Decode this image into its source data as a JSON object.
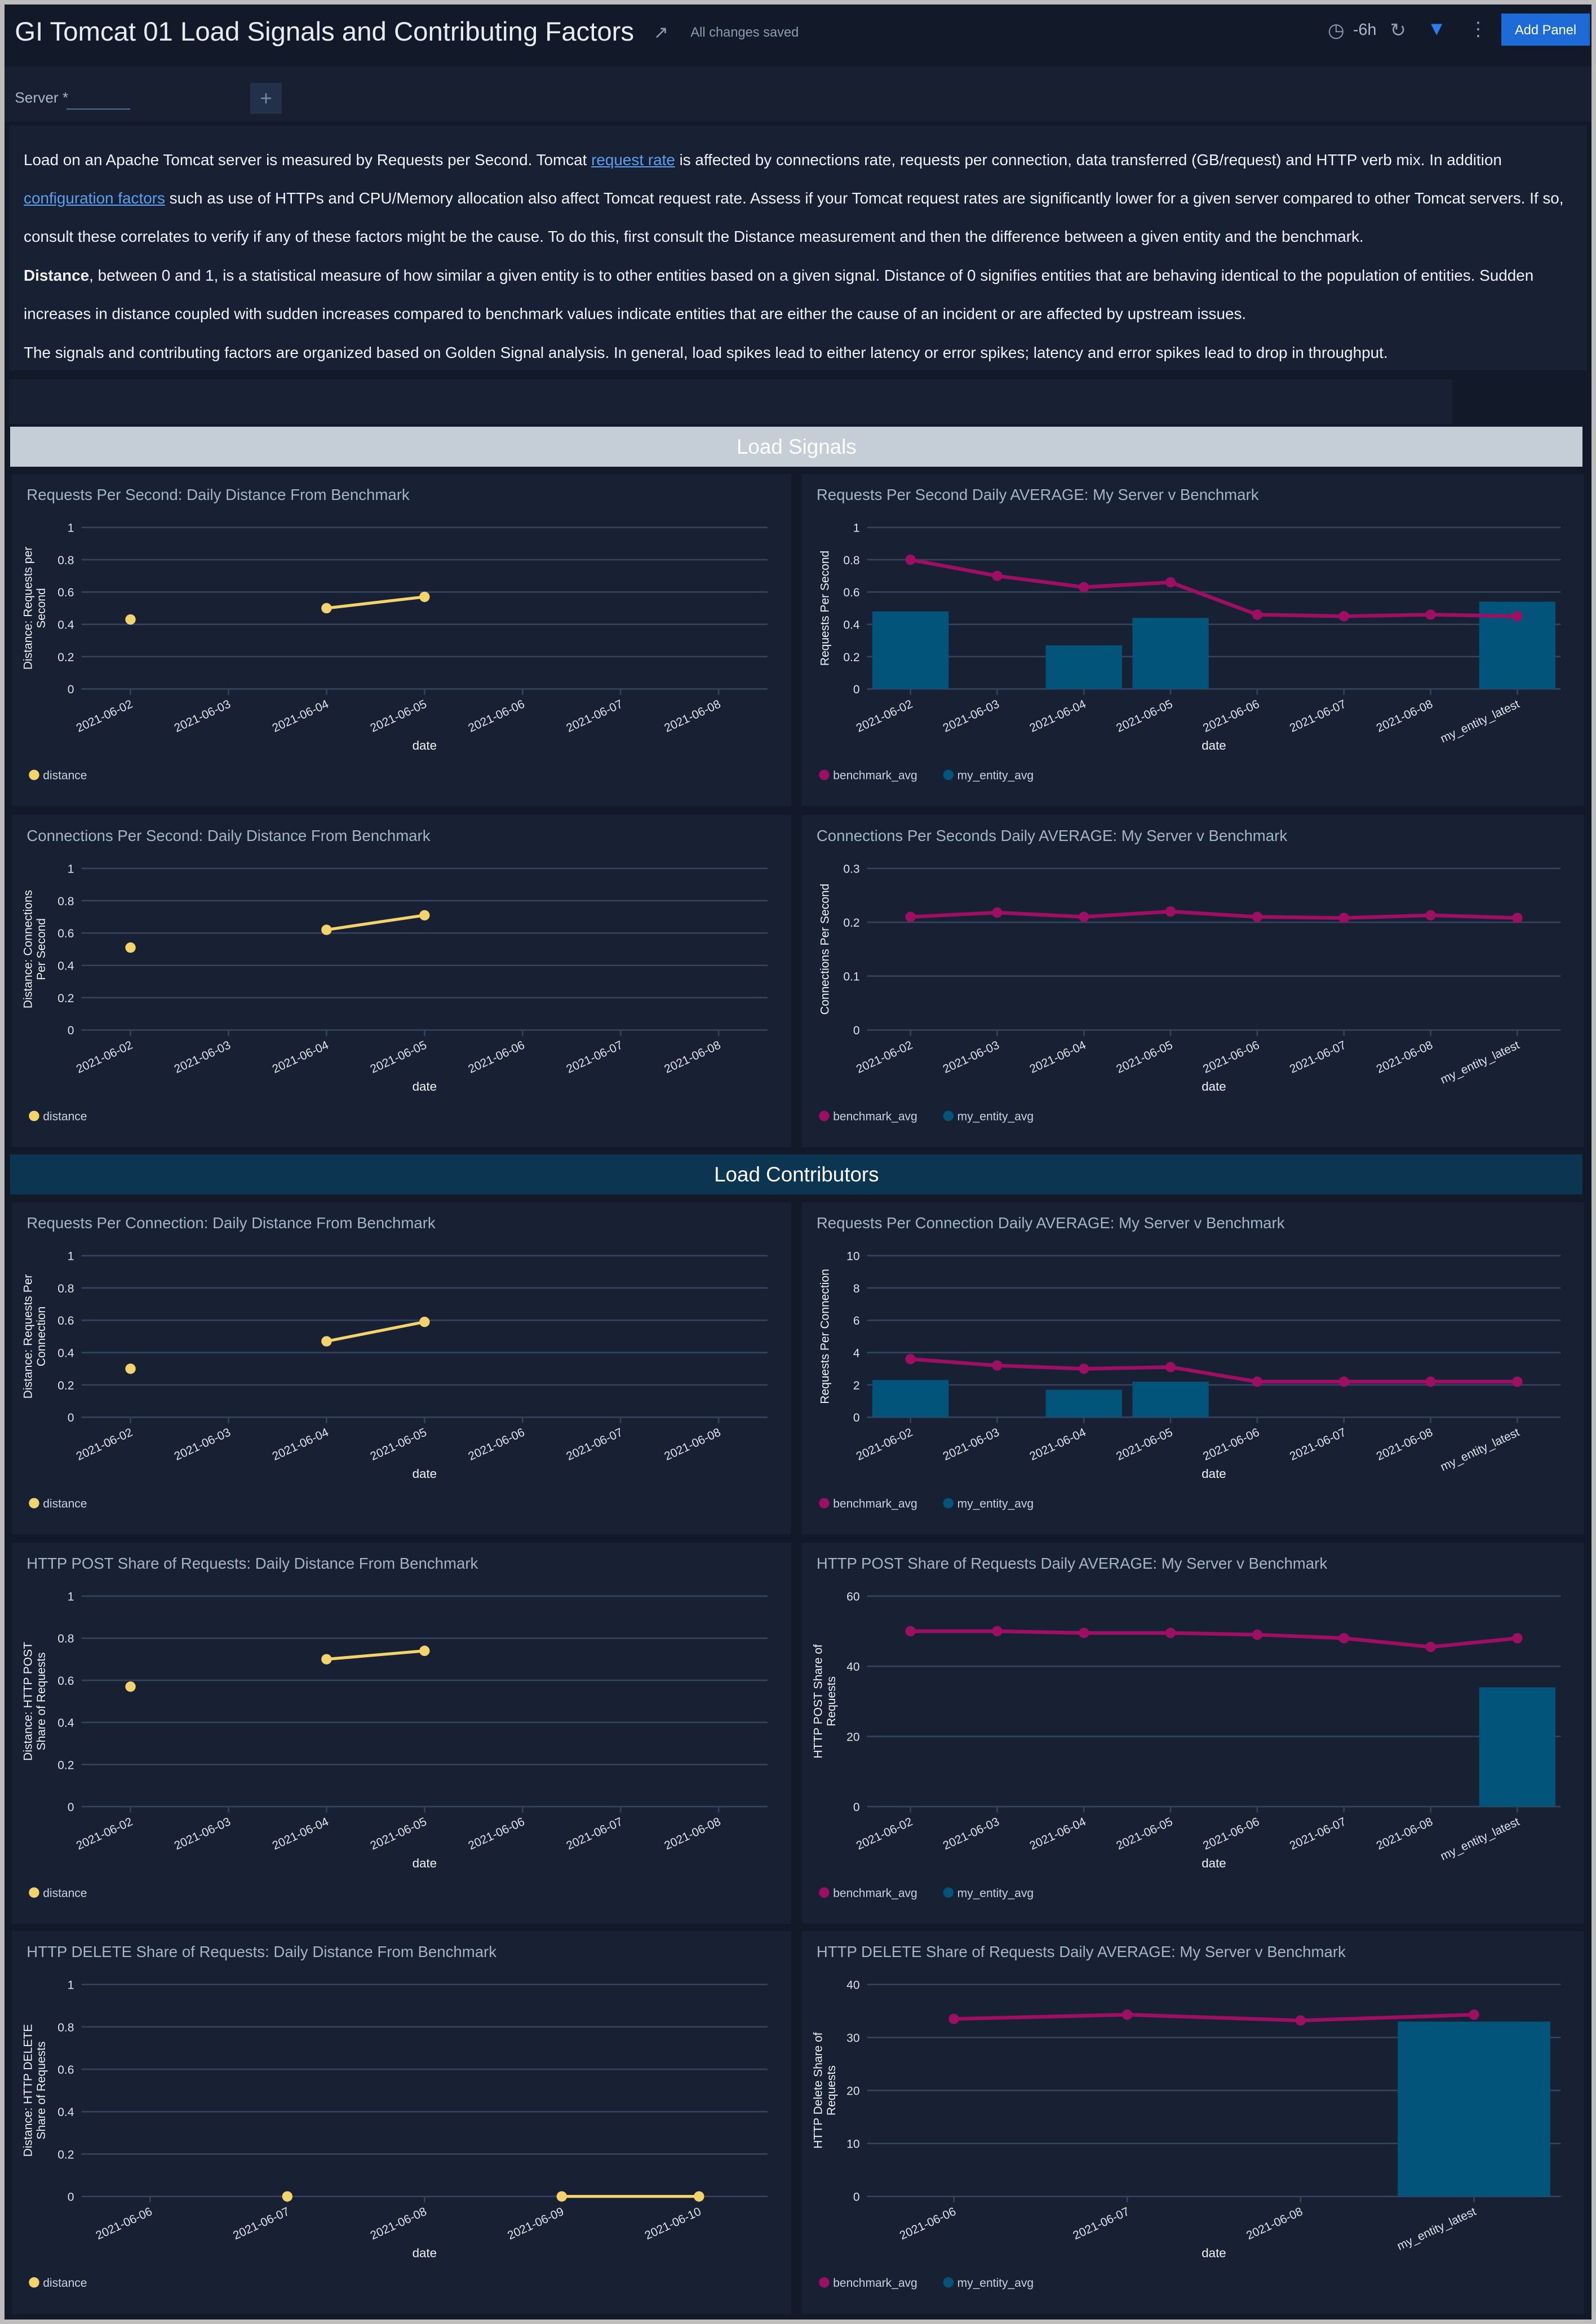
{
  "header": {
    "title": "GI Tomcat 01 Load Signals and Contributing Factors",
    "saved_status": "All changes saved",
    "time_range": "-6h",
    "add_panel_label": "Add Panel",
    "icons": [
      "edit-icon",
      "clock-icon",
      "refresh-icon",
      "filter-icon",
      "more-icon"
    ]
  },
  "filters": {
    "server_label": "Server",
    "required_mark": "*",
    "server_value": "",
    "add_filter_label": "+"
  },
  "description": {
    "p1_a": "Load on an Apache Tomcat server is measured by Requests per Second. Tomcat ",
    "p1_link": "request rate",
    "p1_b": " is affected by connections rate, requests per connection, data transferred (GB/request) and HTTP verb mix. In addition ",
    "p1_link2": "configuration factors",
    "p1_c": " such as use of HTTPs and CPU/Memory allocation also affect Tomcat request rate. Assess if your Tomcat request rates are significantly lower for a given server compared to other Tomcat servers. If so, consult these correlates to verify if any of these factors might be the cause. To do this, first consult the Distance measurement and then the difference between a given entity and the benchmark.",
    "p2_bold": "Distance",
    "p2": ", between 0 and 1, is a statistical measure of how similar a given entity is to other entities based on a given signal. Distance of 0 signifies entities that are behaving identical to the population of entities. Sudden increases in distance coupled with sudden increases compared to benchmark values indicate entities that are either the cause of an incident or are affected by upstream issues.",
    "p3": "The signals and contributing factors are organized based on Golden Signal analysis. In general, load spikes lead to either latency or error spikes; latency and error spikes lead to drop in throughput."
  },
  "sections": [
    {
      "title": "Load Signals",
      "color": "#c5ced7"
    },
    {
      "title": "Load Contributors",
      "color": "#0b3550"
    }
  ],
  "colors": {
    "distance": "#f3d36b",
    "benchmark": "#9c0f62",
    "entity": "#02547a",
    "grid": "#34435e"
  },
  "chart_data": [
    {
      "type": "line",
      "title": "Requests Per Second: Daily Distance From Benchmark",
      "ylabel": "Distance: Requests per Second",
      "xlabel": "date",
      "ylim": [
        0,
        1
      ],
      "yticks": [
        0,
        0.2,
        0.4,
        0.6,
        0.8,
        1
      ],
      "categories": [
        "2021-06-02",
        "2021-06-03",
        "2021-06-04",
        "2021-06-05",
        "2021-06-06",
        "2021-06-07",
        "2021-06-08"
      ],
      "series": [
        {
          "name": "distance",
          "kind": "line",
          "color": "#f3d36b",
          "values": [
            0.43,
            null,
            0.5,
            0.57,
            null,
            null,
            null
          ]
        }
      ]
    },
    {
      "type": "bar+line",
      "title": "Requests Per Second Daily AVERAGE: My Server v Benchmark",
      "ylabel": "Requests Per Second",
      "xlabel": "date",
      "ylim": [
        0,
        1
      ],
      "yticks": [
        0,
        0.2,
        0.4,
        0.6,
        0.8,
        1
      ],
      "categories": [
        "2021-06-02",
        "2021-06-03",
        "2021-06-04",
        "2021-06-05",
        "2021-06-06",
        "2021-06-07",
        "2021-06-08",
        "my_entity_latest"
      ],
      "series": [
        {
          "name": "benchmark_avg",
          "kind": "line",
          "color": "#9c0f62",
          "values": [
            0.8,
            0.7,
            0.63,
            0.66,
            0.46,
            0.45,
            0.46,
            0.45
          ]
        },
        {
          "name": "my_entity_avg",
          "kind": "bar",
          "color": "#02547a",
          "values": [
            0.48,
            null,
            0.27,
            0.44,
            null,
            null,
            null,
            0.54
          ]
        }
      ]
    },
    {
      "type": "line",
      "title": "Connections Per Second: Daily Distance From Benchmark",
      "ylabel": "Distance: Connections Per Second",
      "xlabel": "date",
      "ylim": [
        0,
        1
      ],
      "yticks": [
        0,
        0.2,
        0.4,
        0.6,
        0.8,
        1
      ],
      "categories": [
        "2021-06-02",
        "2021-06-03",
        "2021-06-04",
        "2021-06-05",
        "2021-06-06",
        "2021-06-07",
        "2021-06-08"
      ],
      "series": [
        {
          "name": "distance",
          "kind": "line",
          "color": "#f3d36b",
          "values": [
            0.51,
            null,
            0.62,
            0.71,
            null,
            null,
            null
          ]
        }
      ]
    },
    {
      "type": "bar+line",
      "title": "Connections Per Seconds Daily AVERAGE: My Server v Benchmark",
      "ylabel": "Connections Per Second",
      "xlabel": "date",
      "ylim": [
        0,
        0.3
      ],
      "yticks": [
        0,
        0.1,
        0.2,
        0.3
      ],
      "categories": [
        "2021-06-02",
        "2021-06-03",
        "2021-06-04",
        "2021-06-05",
        "2021-06-06",
        "2021-06-07",
        "2021-06-08",
        "my_entity_latest"
      ],
      "series": [
        {
          "name": "benchmark_avg",
          "kind": "line",
          "color": "#9c0f62",
          "values": [
            0.21,
            0.218,
            0.21,
            0.22,
            0.21,
            0.208,
            0.213,
            0.208
          ]
        },
        {
          "name": "my_entity_avg",
          "kind": "bar",
          "color": "#02547a",
          "values": [
            null,
            null,
            null,
            null,
            null,
            null,
            null,
            null
          ]
        }
      ]
    },
    {
      "type": "line",
      "title": "Requests Per Connection: Daily Distance From Benchmark",
      "ylabel": "Distance: Requests Per Connection",
      "xlabel": "date",
      "ylim": [
        0,
        1
      ],
      "yticks": [
        0,
        0.2,
        0.4,
        0.6,
        0.8,
        1
      ],
      "categories": [
        "2021-06-02",
        "2021-06-03",
        "2021-06-04",
        "2021-06-05",
        "2021-06-06",
        "2021-06-07",
        "2021-06-08"
      ],
      "series": [
        {
          "name": "distance",
          "kind": "line",
          "color": "#f3d36b",
          "values": [
            0.3,
            null,
            0.47,
            0.59,
            null,
            null,
            null
          ]
        }
      ]
    },
    {
      "type": "bar+line",
      "title": "Requests Per Connection Daily AVERAGE: My Server v Benchmark",
      "ylabel": "Requests Per Connection",
      "xlabel": "date",
      "ylim": [
        0,
        10
      ],
      "yticks": [
        0,
        2,
        4,
        6,
        8,
        10
      ],
      "categories": [
        "2021-06-02",
        "2021-06-03",
        "2021-06-04",
        "2021-06-05",
        "2021-06-06",
        "2021-06-07",
        "2021-06-08",
        "my_entity_latest"
      ],
      "series": [
        {
          "name": "benchmark_avg",
          "kind": "line",
          "color": "#9c0f62",
          "values": [
            3.6,
            3.2,
            3.0,
            3.1,
            2.2,
            2.2,
            2.2,
            2.2
          ]
        },
        {
          "name": "my_entity_avg",
          "kind": "bar",
          "color": "#02547a",
          "values": [
            2.3,
            null,
            1.7,
            2.2,
            null,
            null,
            null,
            null
          ]
        }
      ]
    },
    {
      "type": "line",
      "title": "HTTP POST Share of Requests: Daily Distance From Benchmark",
      "ylabel": "Distance: HTTP POST Share of Requests",
      "xlabel": "date",
      "ylim": [
        0,
        1
      ],
      "yticks": [
        0,
        0.2,
        0.4,
        0.6,
        0.8,
        1
      ],
      "categories": [
        "2021-06-02",
        "2021-06-03",
        "2021-06-04",
        "2021-06-05",
        "2021-06-06",
        "2021-06-07",
        "2021-06-08"
      ],
      "series": [
        {
          "name": "distance",
          "kind": "line",
          "color": "#f3d36b",
          "values": [
            0.57,
            null,
            0.7,
            0.74,
            null,
            null,
            null
          ]
        }
      ]
    },
    {
      "type": "bar+line",
      "title": "HTTP POST Share of Requests Daily AVERAGE: My Server v Benchmark",
      "ylabel": "HTTP POST Share of Requests",
      "xlabel": "date",
      "ylim": [
        0,
        60
      ],
      "yticks": [
        0,
        20,
        40,
        60
      ],
      "categories": [
        "2021-06-02",
        "2021-06-03",
        "2021-06-04",
        "2021-06-05",
        "2021-06-06",
        "2021-06-07",
        "2021-06-08",
        "my_entity_latest"
      ],
      "series": [
        {
          "name": "benchmark_avg",
          "kind": "line",
          "color": "#9c0f62",
          "values": [
            50,
            50,
            49.5,
            49.5,
            49,
            48,
            45.5,
            48
          ]
        },
        {
          "name": "my_entity_avg",
          "kind": "bar",
          "color": "#02547a",
          "values": [
            null,
            null,
            null,
            null,
            null,
            null,
            null,
            34
          ]
        }
      ]
    },
    {
      "type": "line",
      "title": "HTTP DELETE Share of Requests: Daily Distance From Benchmark",
      "ylabel": "Distance: HTTP DELETE Share of Requests",
      "xlabel": "date",
      "ylim": [
        0,
        1
      ],
      "yticks": [
        0,
        0.2,
        0.4,
        0.6,
        0.8,
        1
      ],
      "categories": [
        "2021-06-06",
        "2021-06-07",
        "2021-06-08",
        "2021-06-09",
        "2021-06-10"
      ],
      "series": [
        {
          "name": "distance",
          "kind": "line",
          "color": "#f3d36b",
          "values": [
            null,
            0,
            null,
            0,
            0
          ]
        }
      ]
    },
    {
      "type": "bar+line",
      "title": "HTTP DELETE Share of Requests Daily AVERAGE: My Server v Benchmark",
      "ylabel": "HTTP Delete Share of Requests",
      "xlabel": "date",
      "ylim": [
        0,
        40
      ],
      "yticks": [
        0,
        10,
        20,
        30,
        40
      ],
      "categories": [
        "2021-06-06",
        "2021-06-07",
        "2021-06-08",
        "my_entity_latest"
      ],
      "series": [
        {
          "name": "benchmark_avg",
          "kind": "line",
          "color": "#9c0f62",
          "values": [
            33.5,
            34.3,
            33.2,
            34.3
          ]
        },
        {
          "name": "my_entity_avg",
          "kind": "bar",
          "color": "#02547a",
          "values": [
            null,
            null,
            null,
            33
          ]
        }
      ]
    }
  ]
}
